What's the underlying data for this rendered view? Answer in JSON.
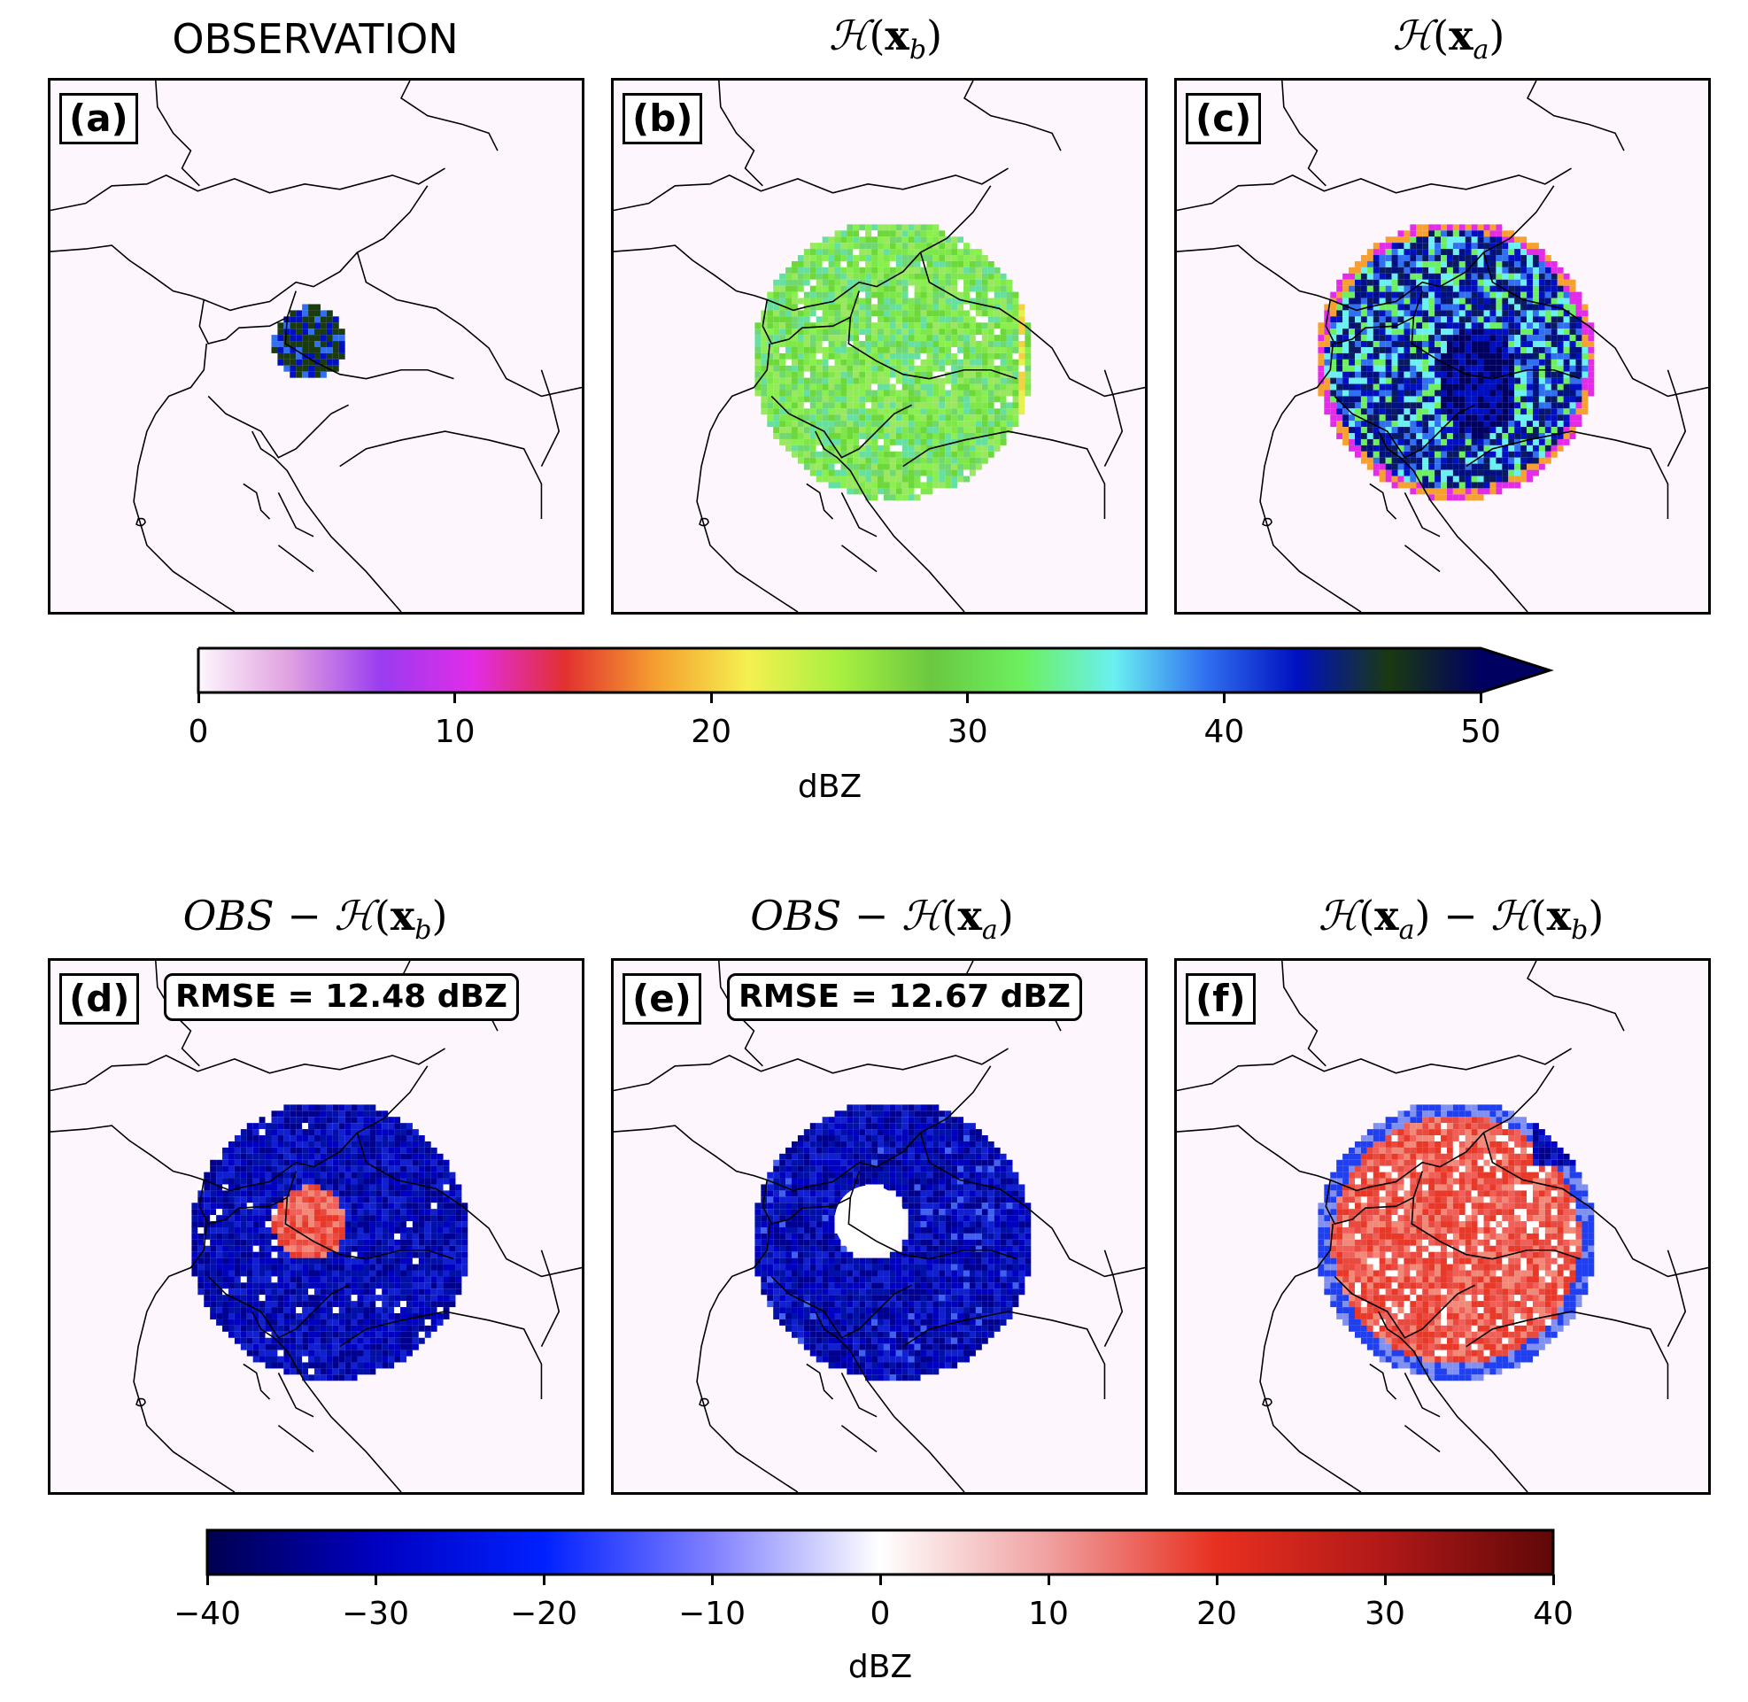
{
  "titles": {
    "a": "OBSERVATION",
    "b": "ℋ(x_b)",
    "c": "ℋ(x_a)",
    "d": "OBS − ℋ(x_b)",
    "e": "OBS − ℋ(x_a)",
    "f": "ℋ(x_a) − ℋ(x_b)"
  },
  "title_parts": {
    "H": "ℋ",
    "OBS": "OBS",
    "x": "x",
    "sub_b": "b",
    "sub_a": "a",
    "minus": "−",
    "lparen": "(",
    "rparen": ")"
  },
  "panels": {
    "a": {
      "label": "(a)"
    },
    "b": {
      "label": "(b)"
    },
    "c": {
      "label": "(c)"
    },
    "d": {
      "label": "(d)",
      "rmse": "RMSE = 12.48 dBZ"
    },
    "e": {
      "label": "(e)",
      "rmse": "RMSE = 12.67 dBZ"
    },
    "f": {
      "label": "(f)"
    }
  },
  "chart_data": [
    {
      "type": "heatmap",
      "title": "OBSERVATION",
      "description_values": {
        "observed_area_dBZ": 45
      },
      "colorbar": {
        "label": "dBZ",
        "min": 0,
        "max": 50,
        "ticks": [
          0,
          10,
          20,
          30,
          40,
          50
        ],
        "extend": "max"
      }
    },
    {
      "type": "heatmap",
      "title": "ℋ(x_b)",
      "colorbar": {
        "label": "dBZ",
        "min": 0,
        "max": 50,
        "ticks": [
          0,
          10,
          20,
          30,
          40,
          50
        ]
      }
    },
    {
      "type": "heatmap",
      "title": "ℋ(x_a)",
      "colorbar": {
        "label": "dBZ",
        "min": 0,
        "max": 50,
        "ticks": [
          0,
          10,
          20,
          30,
          40,
          50
        ]
      }
    },
    {
      "type": "heatmap",
      "title": "OBS − ℋ(x_b)",
      "annotation": "RMSE = 12.48 dBZ",
      "colorbar": {
        "label": "dBZ",
        "min": -40,
        "max": 40,
        "ticks": [
          -40,
          -30,
          -20,
          -10,
          0,
          10,
          20,
          30,
          40
        ]
      }
    },
    {
      "type": "heatmap",
      "title": "OBS − ℋ(x_a)",
      "annotation": "RMSE = 12.67 dBZ",
      "colorbar": {
        "label": "dBZ",
        "min": -40,
        "max": 40,
        "ticks": [
          -40,
          -30,
          -20,
          -10,
          0,
          10,
          20,
          30,
          40
        ]
      }
    },
    {
      "type": "heatmap",
      "title": "ℋ(x_a) − ℋ(x_b)",
      "colorbar": {
        "label": "dBZ",
        "min": -40,
        "max": 40,
        "ticks": [
          -40,
          -30,
          -20,
          -10,
          0,
          10,
          20,
          30,
          40
        ]
      }
    }
  ],
  "colorbar_top": {
    "label": "dBZ",
    "ticks": [
      "0",
      "10",
      "20",
      "30",
      "40",
      "50"
    ],
    "colors": [
      "#fdf7fd",
      "#e0a0e0",
      "#9a3cf0",
      "#e22ce8",
      "#e23030",
      "#f5a030",
      "#f5f050",
      "#a8f040",
      "#6ac840",
      "#6cf060",
      "#6af0f0",
      "#3070f0",
      "#0010c0",
      "#1a3a10",
      "#000060"
    ]
  },
  "colorbar_bottom": {
    "label": "dBZ",
    "ticks": [
      "−40",
      "−30",
      "−20",
      "−10",
      "0",
      "10",
      "20",
      "30",
      "40"
    ],
    "colors": [
      "#000050",
      "#0000c0",
      "#0020ff",
      "#8080ff",
      "#ffffff",
      "#f0a0a0",
      "#e83020",
      "#b01818",
      "#600808"
    ]
  }
}
